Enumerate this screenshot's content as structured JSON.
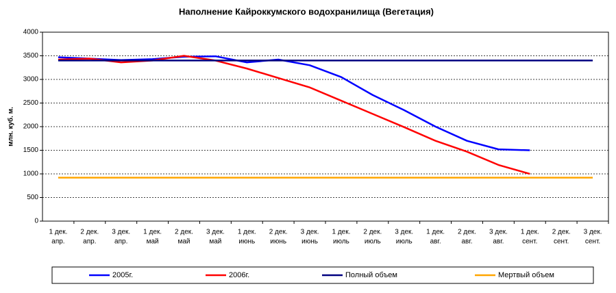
{
  "chart_data": {
    "type": "line",
    "title": "Наполнение Кайроккумского водохранилища (Вегетация)",
    "ylabel": "млн. куб. м.",
    "categories": [
      [
        "1 дек.",
        "апр."
      ],
      [
        "2 дек.",
        "апр."
      ],
      [
        "3 дек.",
        "апр."
      ],
      [
        "1 дек.",
        "май"
      ],
      [
        "2 дек.",
        "май"
      ],
      [
        "3 дек.",
        "май"
      ],
      [
        "1 дек.",
        "июнь"
      ],
      [
        "2 дек.",
        "июнь"
      ],
      [
        "3 дек.",
        "июнь"
      ],
      [
        "1 дек.",
        "июль"
      ],
      [
        "2 дек.",
        "июль"
      ],
      [
        "3 дек.",
        "июль"
      ],
      [
        "1 дек.",
        "авг."
      ],
      [
        "2 дек.",
        "авг."
      ],
      [
        "3 дек.",
        "авг."
      ],
      [
        "1 дек.",
        "сент."
      ],
      [
        "2 дек.",
        "сент."
      ],
      [
        "3 дек.",
        "сент."
      ]
    ],
    "series": [
      {
        "name": "2005г.",
        "color": "#0000ff",
        "values": [
          3470,
          3440,
          3410,
          3430,
          3480,
          3490,
          3360,
          3420,
          3300,
          3050,
          2670,
          2350,
          2000,
          1700,
          1520,
          1500,
          null,
          null
        ]
      },
      {
        "name": "2006г.",
        "color": "#ff0000",
        "values": [
          3420,
          3440,
          3360,
          3400,
          3500,
          3400,
          3230,
          3030,
          2830,
          2550,
          2270,
          1990,
          1700,
          1470,
          1190,
          1000,
          null,
          null
        ]
      },
      {
        "name": "Полный объем",
        "color": "#000080",
        "values": [
          3400,
          3400,
          3400,
          3400,
          3400,
          3400,
          3400,
          3400,
          3400,
          3400,
          3400,
          3400,
          3400,
          3400,
          3400,
          3400,
          3400,
          3400
        ]
      },
      {
        "name": "Мертвый объем",
        "color": "#ffa500",
        "values": [
          920,
          920,
          920,
          920,
          920,
          920,
          920,
          920,
          920,
          920,
          920,
          920,
          920,
          920,
          920,
          920,
          920,
          920
        ]
      }
    ],
    "ylim": [
      0,
      4000
    ],
    "yticks": [
      0,
      500,
      1000,
      1500,
      2000,
      2500,
      3000,
      3500,
      4000
    ],
    "grid": true
  }
}
